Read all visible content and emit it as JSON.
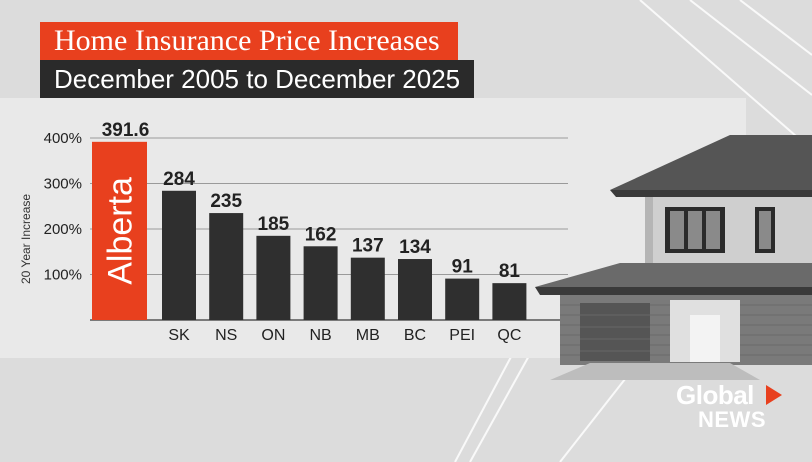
{
  "header": {
    "title": "Home Insurance Price Increases",
    "subtitle": "December 2005 to December 2025"
  },
  "logo": {
    "line1": "Global",
    "line2": "NEWS"
  },
  "colors": {
    "accent": "#e8401e",
    "bar": "#2f2f2f",
    "dark": "#2a2a2a"
  },
  "chart_data": {
    "type": "bar",
    "title": "Home Insurance Price Increases",
    "subtitle": "December 2005 to December 2025",
    "ylabel": "20 Year Increase",
    "xlabel": "",
    "ylim": [
      0,
      400
    ],
    "yticks": [
      100,
      200,
      300,
      400
    ],
    "ytick_labels": [
      "100%",
      "200%",
      "300%",
      "400%"
    ],
    "highlight": {
      "label": "Alberta",
      "value": 391.6,
      "value_label": "391.6",
      "color": "#e8401e"
    },
    "categories": [
      "SK",
      "NS",
      "ON",
      "NB",
      "MB",
      "BC",
      "PEI",
      "QC"
    ],
    "values": [
      284,
      235,
      185,
      162,
      137,
      134,
      91,
      81
    ],
    "value_labels": [
      "284",
      "235",
      "185",
      "162",
      "137",
      "134",
      "91",
      "81"
    ],
    "grid": true,
    "legend": "none"
  }
}
